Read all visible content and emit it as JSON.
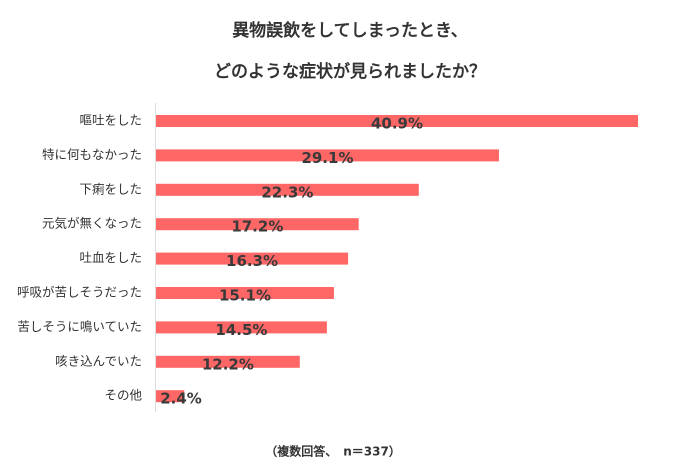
{
  "chart_data": {
    "type": "bar",
    "orientation": "horizontal",
    "title_lines": [
      "異物誤飲をしてしまったとき、",
      "どのような症状が見られましたか？"
    ],
    "categories": [
      "嘔吐をした",
      "特に何もなかった",
      "下痢をした",
      "元気が無くなった",
      "吐血をした",
      "呼吸が苦しそうだった",
      "苦しそうに鳴いていた",
      "咳き込んでいた",
      "その他"
    ],
    "values": [
      40.9,
      29.1,
      22.3,
      17.2,
      16.3,
      15.1,
      14.5,
      12.2,
      2.4
    ],
    "value_labels": [
      "40.9%",
      "29.1%",
      "22.3%",
      "17.2%",
      "16.3%",
      "15.1%",
      "14.5%",
      "12.2%",
      "2.4%"
    ],
    "color": "#ff6666",
    "note": "（複数回答、　n＝337）"
  }
}
